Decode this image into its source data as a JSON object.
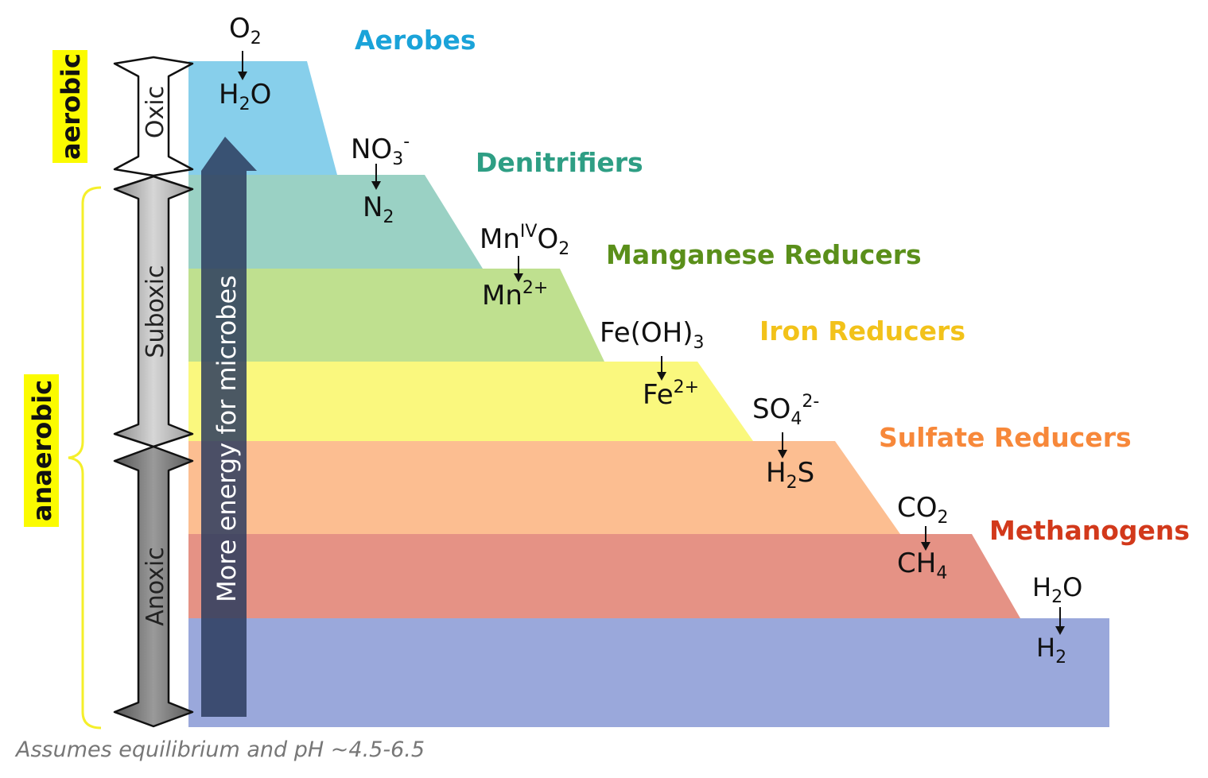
{
  "colors": {
    "aerobes": "#1aa3d9",
    "denitrifiers": "#2e9e84",
    "manganese": "#5a8f1a",
    "iron": "#f2c21a",
    "sulfate": "#f7883a",
    "methanogens": "#d2391b"
  },
  "side_labels": {
    "aerobic": "aerobic",
    "anaerobic": "anaerobic"
  },
  "zones": {
    "oxic": "Oxic",
    "suboxic": "Suboxic",
    "anoxic": "Anoxic"
  },
  "energy_label": "More energy for microbes",
  "groups": [
    {
      "name": "Aerobes"
    },
    {
      "name": "Denitrifiers"
    },
    {
      "name": "Manganese Reducers"
    },
    {
      "name": "Iron Reducers"
    },
    {
      "name": "Sulfate Reducers"
    },
    {
      "name": "Methanogens"
    }
  ],
  "reactions": {
    "o2": {
      "base": "O",
      "sub": "2"
    },
    "h2o_1": {
      "a": "H",
      "sub": "2",
      "b": "O"
    },
    "no3": {
      "base": "NO",
      "sub": "3",
      "sup": "-"
    },
    "n2": {
      "base": "N",
      "sub": "2"
    },
    "mno2": {
      "a": "Mn",
      "sup": "IV",
      "b": "O",
      "sub": "2"
    },
    "mn2": {
      "base": "Mn",
      "sup": "2+"
    },
    "feoh3": {
      "base": "Fe(OH)",
      "sub": "3"
    },
    "fe2": {
      "base": "Fe",
      "sup": "2+"
    },
    "so4": {
      "base": "SO",
      "sub": "4",
      "sup": "2-"
    },
    "h2s": {
      "a": "H",
      "sub": "2",
      "b": "S"
    },
    "co2": {
      "base": "CO",
      "sub": "2"
    },
    "ch4": {
      "base": "CH",
      "sub": "4"
    },
    "h2o_2": {
      "a": "H",
      "sub": "2",
      "b": "O"
    },
    "h2": {
      "base": "H",
      "sub": "2"
    }
  },
  "note": "Assumes equilibrium and pH ~4.5-6.5"
}
